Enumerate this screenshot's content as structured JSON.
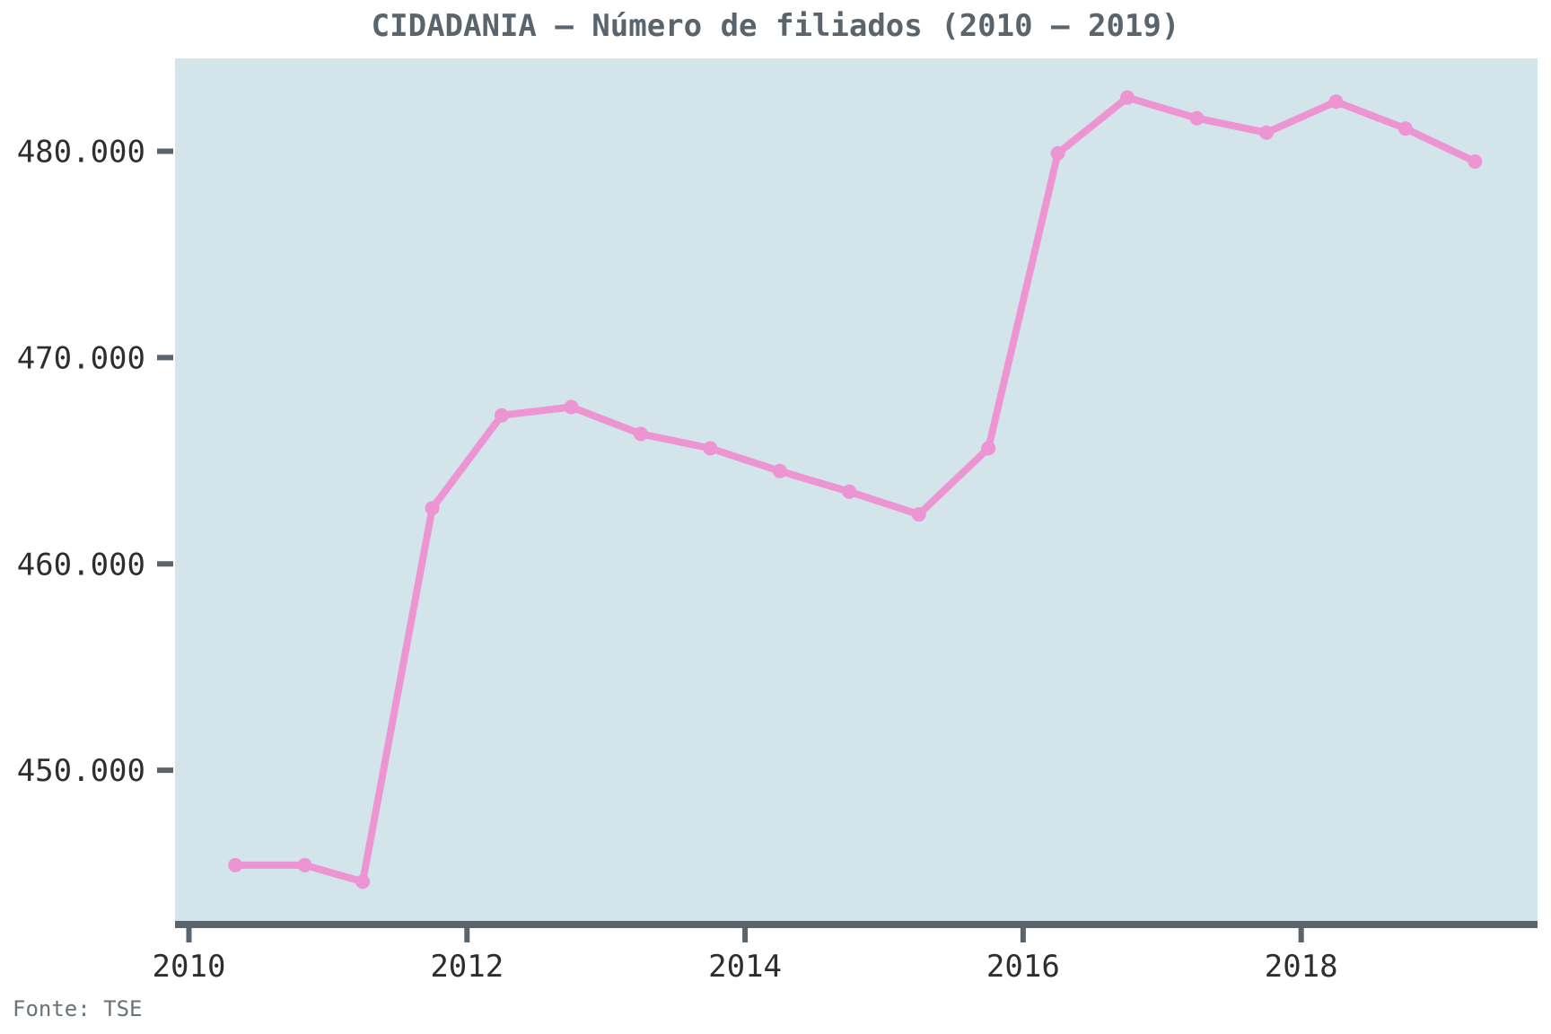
{
  "chart_data": {
    "type": "line",
    "title": "CIDADANIA – Número de filiados (2010 – 2019)",
    "xlabel": "",
    "ylabel": "",
    "x_ticks": [
      2010,
      2012,
      2014,
      2016,
      2018
    ],
    "x_tick_labels": [
      "2010",
      "2012",
      "2014",
      "2016",
      "2018"
    ],
    "y_ticks": [
      450000,
      460000,
      470000,
      480000
    ],
    "y_tick_labels": [
      "450.000",
      "460.000",
      "470.000",
      "480.000"
    ],
    "xlim": [
      2009.9,
      2019.7
    ],
    "ylim": [
      442700,
      484500
    ],
    "grid": false,
    "series": [
      {
        "color": "#ec95d2",
        "x": [
          "2010-05",
          "2010-11",
          "2011-04",
          "2011-10",
          "2012-04",
          "2012-10",
          "2013-04",
          "2013-10",
          "2014-04",
          "2014-10",
          "2015-04",
          "2015-10",
          "2016-04",
          "2016-10",
          "2017-04",
          "2017-10",
          "2018-04",
          "2018-10",
          "2019-04"
        ],
        "y": [
          445400,
          445400,
          444600,
          462700,
          467200,
          467600,
          466300,
          465600,
          464500,
          463500,
          462400,
          465600,
          479900,
          482600,
          481600,
          480900,
          482400,
          481100,
          479500
        ]
      }
    ],
    "colors": {
      "plot_background": "#d4e4eb",
      "axis": "#5a646c"
    }
  },
  "source_note": "Fonte: TSE"
}
